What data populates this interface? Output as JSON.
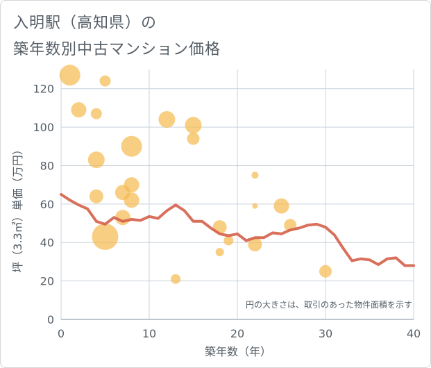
{
  "title": {
    "line1": "入明駅（高知県）の",
    "line2": "築年数別中古マンション価格"
  },
  "colors": {
    "bubble": "#f5b94e",
    "line": "#d4604a",
    "grid": "#c9d3dc",
    "text": "#555e66"
  },
  "chart_data": {
    "type": "scatter",
    "xlabel": "築年数（年）",
    "ylabel": "坪（3.3㎡）単価（万円）",
    "xlim": [
      0,
      40
    ],
    "ylim": [
      0,
      130
    ],
    "xticks": [
      0,
      10,
      20,
      30,
      40
    ],
    "yticks": [
      0,
      20,
      40,
      60,
      80,
      100,
      120
    ],
    "x_tick_labels": [
      "0",
      "10",
      "20",
      "30",
      "40"
    ],
    "y_tick_labels": [
      "0",
      "20",
      "40",
      "60",
      "80",
      "100",
      "120"
    ],
    "grid": true,
    "note": "円の大きさは、取引のあった物件面積を示す",
    "points": [
      {
        "x": 1,
        "y": 127,
        "size": 15
      },
      {
        "x": 2,
        "y": 109,
        "size": 11
      },
      {
        "x": 4,
        "y": 107,
        "size": 8
      },
      {
        "x": 5,
        "y": 124,
        "size": 8
      },
      {
        "x": 4,
        "y": 83,
        "size": 12
      },
      {
        "x": 4,
        "y": 64,
        "size": 10
      },
      {
        "x": 5,
        "y": 43,
        "size": 19
      },
      {
        "x": 7,
        "y": 66,
        "size": 11
      },
      {
        "x": 7,
        "y": 53,
        "size": 11
      },
      {
        "x": 8,
        "y": 90,
        "size": 15
      },
      {
        "x": 8,
        "y": 70,
        "size": 11
      },
      {
        "x": 8,
        "y": 62,
        "size": 11
      },
      {
        "x": 12,
        "y": 104,
        "size": 12
      },
      {
        "x": 13,
        "y": 21,
        "size": 7
      },
      {
        "x": 15,
        "y": 101,
        "size": 12
      },
      {
        "x": 15,
        "y": 94,
        "size": 9
      },
      {
        "x": 18,
        "y": 48,
        "size": 10
      },
      {
        "x": 18,
        "y": 35,
        "size": 6
      },
      {
        "x": 19,
        "y": 41,
        "size": 7
      },
      {
        "x": 22,
        "y": 75,
        "size": 5
      },
      {
        "x": 22,
        "y": 59,
        "size": 4
      },
      {
        "x": 22,
        "y": 39,
        "size": 10
      },
      {
        "x": 25,
        "y": 59,
        "size": 11
      },
      {
        "x": 26,
        "y": 49,
        "size": 9
      },
      {
        "x": 30,
        "y": 25,
        "size": 9
      }
    ],
    "series": [
      {
        "type": "line",
        "x": [
          0,
          1,
          2,
          3,
          4,
          5,
          6,
          7,
          8,
          9,
          10,
          11,
          12,
          13,
          14,
          15,
          16,
          17,
          18,
          19,
          20,
          21,
          22,
          23,
          24,
          25,
          26,
          27,
          28,
          29,
          30,
          31,
          32,
          33,
          34,
          35,
          36,
          37,
          38,
          39,
          40
        ],
        "y": [
          65,
          62,
          59.5,
          57.5,
          51,
          49.5,
          53,
          51,
          52,
          51.5,
          53.5,
          52.5,
          56.5,
          59.5,
          56.5,
          51,
          51,
          47.5,
          44.5,
          43.5,
          44.5,
          41,
          42.5,
          42.5,
          45,
          44.5,
          46.5,
          47.5,
          49,
          49.5,
          48,
          44,
          37,
          30.5,
          31.5,
          31,
          28.5,
          31.5,
          32,
          28,
          28
        ]
      }
    ]
  }
}
